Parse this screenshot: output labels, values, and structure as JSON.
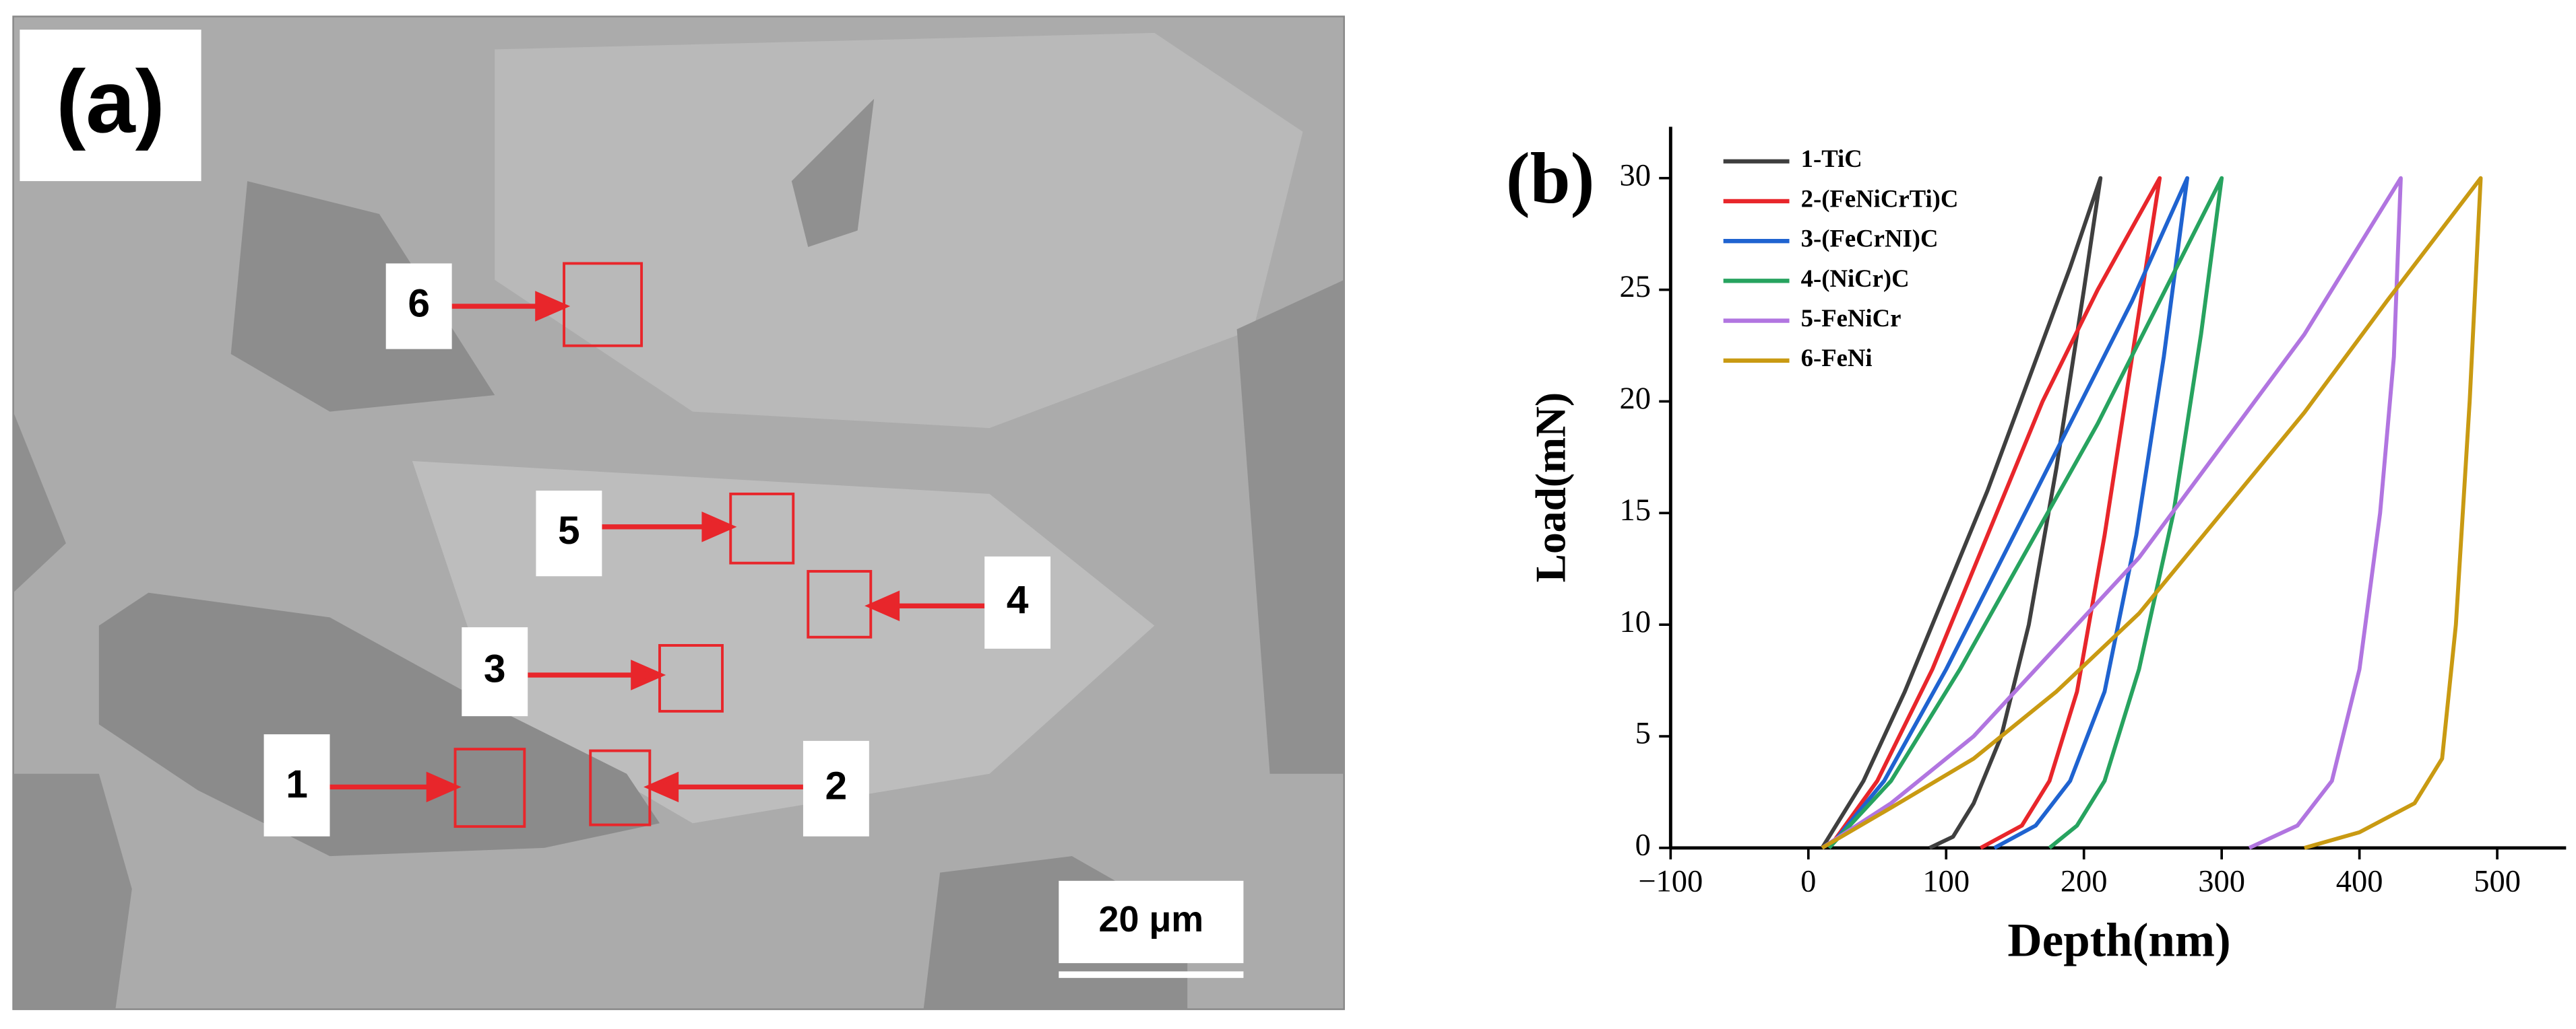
{
  "micrograph": {
    "panel_label": "(a)",
    "markers": [
      "1",
      "2",
      "3",
      "4",
      "5",
      "6"
    ],
    "scale_bar": "20 μm"
  },
  "chart_data": {
    "type": "line",
    "panel_label": "(b)",
    "x_label": "Depth(nm)",
    "y_label": "Load(mN)",
    "xlim": [
      -100,
      550
    ],
    "ylim": [
      0,
      32.3
    ],
    "xticks": [
      {
        "value": -100,
        "label": "−100"
      },
      0,
      100,
      200,
      300,
      400,
      500
    ],
    "yticks": [
      0,
      5,
      10,
      15,
      20,
      25,
      30
    ],
    "legend": "upper left",
    "series": [
      {
        "name": "1-TiC",
        "color": "#3f3f3f",
        "x": [
          10,
          40,
          70,
          100,
          130,
          160,
          190,
          212,
          200,
          180,
          160,
          140,
          120,
          105,
          88
        ],
        "y": [
          0,
          3,
          7,
          11.5,
          16,
          21,
          26,
          30,
          25,
          17,
          10,
          5,
          2,
          0.5,
          0
        ]
      },
      {
        "name": "2-(FeNiCrTi)C",
        "color": "#e8262b",
        "x": [
          15,
          50,
          90,
          130,
          170,
          210,
          255,
          235,
          215,
          195,
          175,
          155,
          125
        ],
        "y": [
          0,
          3,
          8,
          14,
          20,
          25,
          30,
          22,
          14,
          7,
          3,
          1,
          0
        ]
      },
      {
        "name": "3-(FeCrNI)C",
        "color": "#1f63d0",
        "x": [
          15,
          55,
          100,
          145,
          190,
          235,
          275,
          258,
          238,
          215,
          190,
          165,
          135
        ],
        "y": [
          0,
          3,
          8,
          13.5,
          19,
          24.5,
          30,
          22,
          14,
          7,
          3,
          1,
          0
        ]
      },
      {
        "name": "4-(NiCr)C",
        "color": "#27a35f",
        "x": [
          15,
          60,
          110,
          160,
          210,
          255,
          300,
          285,
          265,
          240,
          215,
          195,
          175
        ],
        "y": [
          0,
          3,
          8,
          13.5,
          19,
          24.5,
          30,
          23,
          15,
          8,
          3,
          1,
          0
        ]
      },
      {
        "name": "5-FeNiCr",
        "color": "#b175e0",
        "x": [
          10,
          60,
          120,
          180,
          240,
          300,
          360,
          410,
          430,
          425,
          415,
          400,
          380,
          355,
          320
        ],
        "y": [
          0,
          2,
          5,
          9,
          13,
          18,
          23,
          28,
          30,
          22,
          15,
          8,
          3,
          1,
          0
        ]
      },
      {
        "name": "6-FeNi",
        "color": "#c99a12",
        "x": [
          10,
          60,
          120,
          180,
          240,
          300,
          360,
          420,
          488,
          480,
          470,
          460,
          440,
          400,
          360
        ],
        "y": [
          0,
          1.8,
          4,
          7,
          10.5,
          15,
          19.5,
          24.5,
          30,
          20,
          10,
          4,
          2,
          0.7,
          0
        ]
      }
    ]
  }
}
